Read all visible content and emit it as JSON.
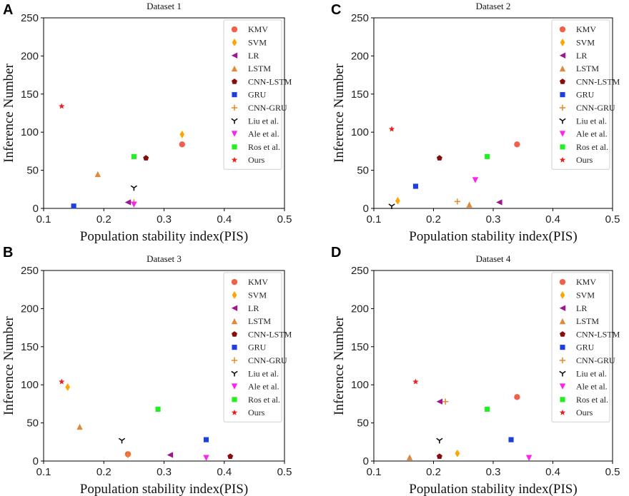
{
  "chart_data": [
    {
      "type": "scatter",
      "panel_label": "A",
      "title": "Dataset 1",
      "xlabel": "Population stability index(PIS)",
      "ylabel": "Inference Number",
      "xlim": [
        0.1,
        0.5
      ],
      "ylim": [
        0,
        250
      ],
      "xticks": [
        "0.1",
        "0.2",
        "0.3",
        "0.4",
        "0.5"
      ],
      "yticks": [
        "0",
        "50",
        "100",
        "150",
        "200",
        "250"
      ],
      "grid": false,
      "legend_position": "top-right",
      "series": [
        {
          "name": "KMV",
          "x": 0.33,
          "y": 84
        },
        {
          "name": "SVM",
          "x": 0.33,
          "y": 97
        },
        {
          "name": "LR",
          "x": 0.24,
          "y": 8
        },
        {
          "name": "LSTM",
          "x": 0.19,
          "y": 45
        },
        {
          "name": "CNN-LSTM",
          "x": 0.27,
          "y": 66
        },
        {
          "name": "GRU",
          "x": 0.15,
          "y": 3
        },
        {
          "name": "CNN-GRU",
          "x": 0.25,
          "y": 8
        },
        {
          "name": "Liu et al.",
          "x": 0.25,
          "y": 27
        },
        {
          "name": "Ale et al.",
          "x": 0.25,
          "y": 5
        },
        {
          "name": "Ros et al.",
          "x": 0.25,
          "y": 68
        },
        {
          "name": "Ours",
          "x": 0.13,
          "y": 134
        }
      ]
    },
    {
      "type": "scatter",
      "panel_label": "C",
      "title": "Dataset 2",
      "xlabel": "Population stability index(PIS)",
      "ylabel": "Inference Number",
      "xlim": [
        0.1,
        0.5
      ],
      "ylim": [
        0,
        250
      ],
      "xticks": [
        "0.1",
        "0.2",
        "0.3",
        "0.4",
        "0.5"
      ],
      "yticks": [
        "0",
        "50",
        "100",
        "150",
        "200",
        "250"
      ],
      "grid": false,
      "legend_position": "top-right",
      "series": [
        {
          "name": "KMV",
          "x": 0.34,
          "y": 84
        },
        {
          "name": "SVM",
          "x": 0.14,
          "y": 10
        },
        {
          "name": "LR",
          "x": 0.31,
          "y": 8
        },
        {
          "name": "LSTM",
          "x": 0.26,
          "y": 5
        },
        {
          "name": "CNN-LSTM",
          "x": 0.21,
          "y": 66
        },
        {
          "name": "GRU",
          "x": 0.17,
          "y": 29
        },
        {
          "name": "CNN-GRU",
          "x": 0.24,
          "y": 9
        },
        {
          "name": "Liu et al.",
          "x": 0.13,
          "y": 3
        },
        {
          "name": "Ale et al.",
          "x": 0.27,
          "y": 37
        },
        {
          "name": "Ros et al.",
          "x": 0.29,
          "y": 68
        },
        {
          "name": "Ours",
          "x": 0.13,
          "y": 104
        }
      ]
    },
    {
      "type": "scatter",
      "panel_label": "B",
      "title": "Dataset 3",
      "xlabel": "Population stability index(PIS)",
      "ylabel": "Inference Number",
      "xlim": [
        0.1,
        0.5
      ],
      "ylim": [
        0,
        250
      ],
      "xticks": [
        "0.1",
        "0.2",
        "0.3",
        "0.4",
        "0.5"
      ],
      "yticks": [
        "0",
        "50",
        "100",
        "150",
        "200",
        "250"
      ],
      "grid": false,
      "legend_position": "top-right",
      "series": [
        {
          "name": "KMV",
          "x": 0.24,
          "y": 9
        },
        {
          "name": "SVM",
          "x": 0.14,
          "y": 97
        },
        {
          "name": "LR",
          "x": 0.31,
          "y": 8
        },
        {
          "name": "LSTM",
          "x": 0.16,
          "y": 45
        },
        {
          "name": "CNN-LSTM",
          "x": 0.41,
          "y": 6
        },
        {
          "name": "GRU",
          "x": 0.37,
          "y": 28
        },
        {
          "name": "CNN-GRU",
          "x": 0.24,
          "y": 8
        },
        {
          "name": "Liu et al.",
          "x": 0.23,
          "y": 27
        },
        {
          "name": "Ale et al.",
          "x": 0.37,
          "y": 4
        },
        {
          "name": "Ros et al.",
          "x": 0.29,
          "y": 68
        },
        {
          "name": "Ours",
          "x": 0.13,
          "y": 104
        }
      ]
    },
    {
      "type": "scatter",
      "panel_label": "D",
      "title": "Dataset 4",
      "xlabel": "Population stability index(PIS)",
      "ylabel": "Inference Number",
      "xlim": [
        0.1,
        0.5
      ],
      "ylim": [
        0,
        250
      ],
      "xticks": [
        "0.1",
        "0.2",
        "0.3",
        "0.4",
        "0.5"
      ],
      "yticks": [
        "0",
        "50",
        "100",
        "150",
        "200",
        "250"
      ],
      "grid": false,
      "legend_position": "top-right",
      "series": [
        {
          "name": "KMV",
          "x": 0.34,
          "y": 84
        },
        {
          "name": "SVM",
          "x": 0.24,
          "y": 10
        },
        {
          "name": "LR",
          "x": 0.21,
          "y": 78
        },
        {
          "name": "LSTM",
          "x": 0.16,
          "y": 5
        },
        {
          "name": "CNN-LSTM",
          "x": 0.21,
          "y": 6
        },
        {
          "name": "GRU",
          "x": 0.33,
          "y": 28
        },
        {
          "name": "CNN-GRU",
          "x": 0.22,
          "y": 78
        },
        {
          "name": "Liu et al.",
          "x": 0.21,
          "y": 27
        },
        {
          "name": "Ale et al.",
          "x": 0.36,
          "y": 4
        },
        {
          "name": "Ros et al.",
          "x": 0.29,
          "y": 68
        },
        {
          "name": "Ours",
          "x": 0.17,
          "y": 104
        }
      ]
    }
  ],
  "styles": {
    "KMV": {
      "marker": "circle",
      "color": "#f0604a"
    },
    "SVM": {
      "marker": "diamond",
      "color": "#ffa500"
    },
    "LR": {
      "marker": "triangle-left",
      "color": "#a0168c"
    },
    "LSTM": {
      "marker": "triangle-up",
      "color": "#e0893a"
    },
    "CNN-LSTM": {
      "marker": "pentagon",
      "color": "#8b0a0a"
    },
    "GRU": {
      "marker": "square",
      "color": "#1f3ee0"
    },
    "CNN-GRU": {
      "marker": "plus",
      "color": "#e8882a"
    },
    "Liu et al.": {
      "marker": "tri-down",
      "color": "#111111"
    },
    "Ale et al.": {
      "marker": "triangle-down",
      "color": "#ff22ee"
    },
    "Ros et al.": {
      "marker": "square",
      "color": "#22ee22"
    },
    "Ours": {
      "marker": "star",
      "color": "#ee1f1f"
    }
  }
}
